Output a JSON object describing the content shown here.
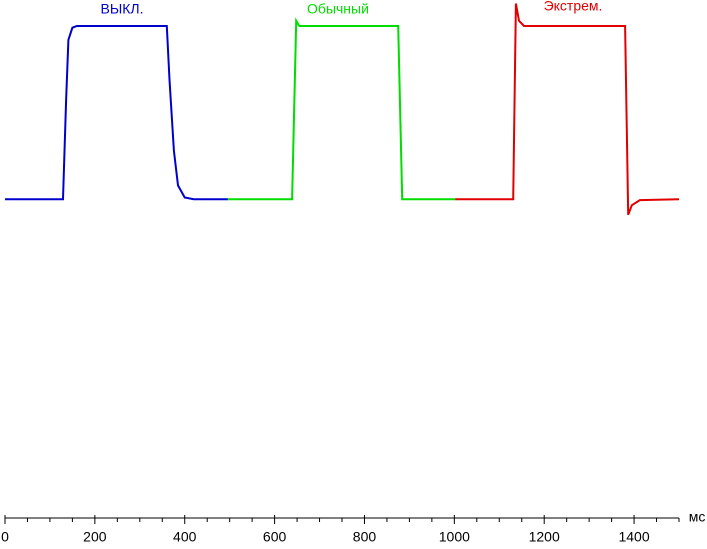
{
  "chart_data": {
    "type": "line",
    "x_label": "мс",
    "xlim": [
      0,
      1500
    ],
    "ylim": [
      -184,
      115
    ],
    "xticks": [
      0,
      200,
      400,
      600,
      800,
      1000,
      1200,
      1400
    ],
    "xminor_ticks": [
      50,
      100,
      150,
      250,
      300,
      350,
      450,
      500,
      550,
      650,
      700,
      750,
      850,
      900,
      950,
      1050,
      1100,
      1150,
      1250,
      1300,
      1350,
      1450,
      1500
    ],
    "series": [
      {
        "name": "ВЫКЛ.",
        "color": "#0000cc",
        "x": [
          0,
          129,
          136,
          141,
          150,
          160,
          360,
          366,
          376,
          385,
          400,
          420,
          496
        ],
        "values": [
          0,
          0,
          57,
          92,
          99,
          100,
          100,
          69,
          28,
          8,
          1,
          0,
          0
        ]
      },
      {
        "name": "Обычный",
        "color": "#00dd00",
        "x": [
          496,
          639,
          648,
          655,
          875,
          884,
          1002
        ],
        "values": [
          0,
          0,
          103,
          100,
          100,
          0,
          0
        ]
      },
      {
        "name": "Экстрем.",
        "color": "#e00000",
        "x": [
          1002,
          1131,
          1137,
          1144,
          1155,
          1380,
          1387,
          1395,
          1413,
          1500
        ],
        "values": [
          0,
          0,
          113,
          103,
          100,
          100,
          -9,
          -3.5,
          -0.5,
          0
        ]
      }
    ]
  }
}
